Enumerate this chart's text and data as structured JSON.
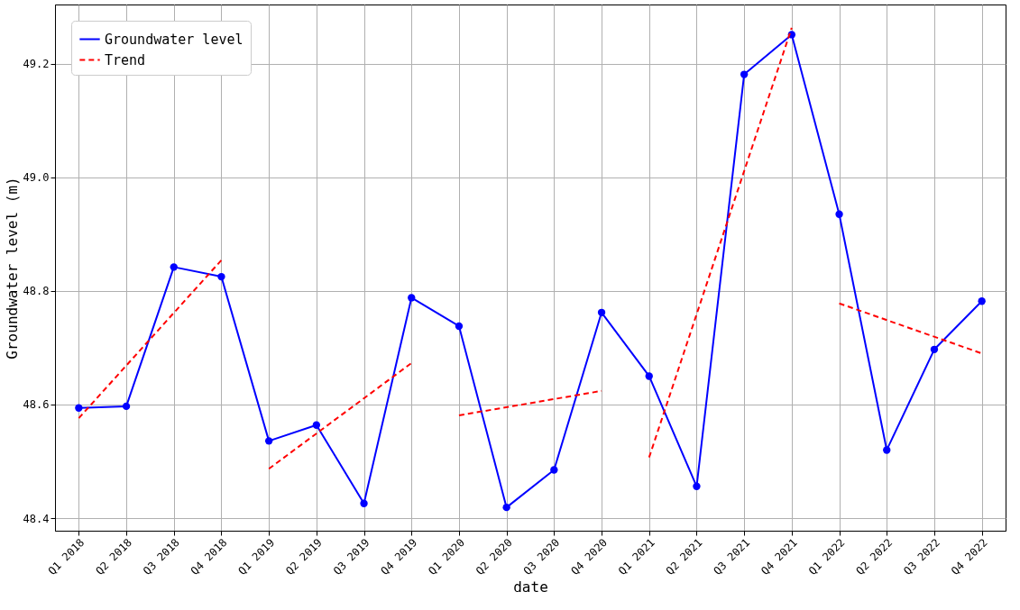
{
  "chart_data": {
    "type": "line",
    "xlabel": "date",
    "ylabel": "Groundwater level (m)",
    "categories": [
      "Q1 2018",
      "Q2 2018",
      "Q3 2018",
      "Q4 2018",
      "Q1 2019",
      "Q2 2019",
      "Q3 2019",
      "Q4 2019",
      "Q1 2020",
      "Q2 2020",
      "Q3 2020",
      "Q4 2020",
      "Q1 2021",
      "Q2 2021",
      "Q3 2021",
      "Q4 2021",
      "Q1 2022",
      "Q2 2022",
      "Q3 2022",
      "Q4 2022"
    ],
    "series": [
      {
        "name": "Groundwater level",
        "color": "#0000ff",
        "marker": "circle",
        "line_style": "solid",
        "values": [
          48.594,
          48.597,
          48.842,
          48.825,
          48.536,
          48.564,
          48.426,
          48.788,
          48.738,
          48.419,
          48.485,
          48.762,
          48.65,
          48.456,
          49.181,
          49.251,
          48.935,
          48.52,
          48.697,
          48.782
        ]
      },
      {
        "name": "Trend",
        "type": "line",
        "color": "#ff0000",
        "marker": "none",
        "line_style": "dashed",
        "x": [
          "Q1 2018",
          "Q4 2018"
        ],
        "values": [
          48.576,
          48.854
        ]
      },
      {
        "type": "line",
        "color": "#ff0000",
        "marker": "none",
        "line_style": "dashed",
        "x": [
          "Q1 2019",
          "Q4 2019"
        ],
        "values": [
          48.487,
          48.673
        ]
      },
      {
        "type": "line",
        "color": "#ff0000",
        "marker": "none",
        "line_style": "dashed",
        "x": [
          "Q1 2020",
          "Q4 2020"
        ],
        "values": [
          48.581,
          48.624
        ]
      },
      {
        "type": "line",
        "color": "#ff0000",
        "marker": "none",
        "line_style": "dashed",
        "x": [
          "Q1 2021",
          "Q4 2021"
        ],
        "values": [
          48.507,
          49.263
        ]
      },
      {
        "type": "line",
        "color": "#ff0000",
        "marker": "none",
        "line_style": "dashed",
        "x": [
          "Q1 2022",
          "Q4 2022"
        ],
        "values": [
          48.778,
          48.69
        ]
      }
    ],
    "ylim": [
      48.378,
      49.304
    ],
    "yticks": [
      {
        "value": 48.4,
        "label": "48.4"
      },
      {
        "value": 48.6,
        "label": "48.6"
      },
      {
        "value": 48.8,
        "label": "48.8"
      },
      {
        "value": 49.0,
        "label": "49.0"
      },
      {
        "value": 49.2,
        "label": "49.2"
      }
    ],
    "grid": true,
    "legend": "top left"
  }
}
